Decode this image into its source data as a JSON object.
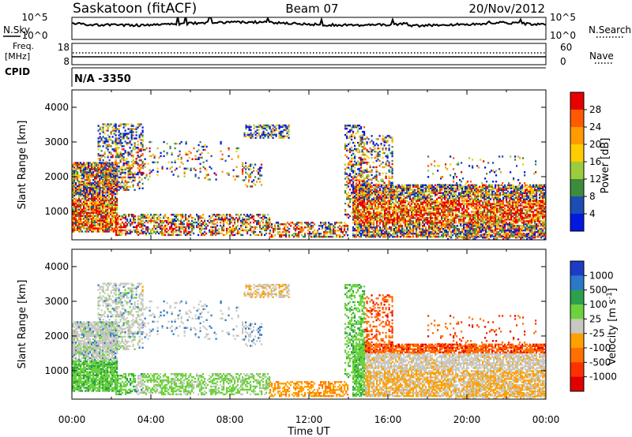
{
  "header": {
    "station": "Saskatoon (fitACF)",
    "beam": "Beam 07",
    "date": "20/Nov/2012"
  },
  "top_panel": {
    "left_label": "N.Sky",
    "right_label": "N.Search",
    "left_ticks": [
      "10^5",
      "10^0"
    ],
    "right_ticks": [
      "10^5",
      "10^0"
    ]
  },
  "freq_panel": {
    "left_label_line1": "Freq.",
    "left_label_line2": "[MHz]",
    "left_ticks": [
      "18",
      "8"
    ],
    "right_ticks": [
      "60",
      "0"
    ],
    "right_label": "Nave"
  },
  "cpid_panel": {
    "label": "CPID",
    "value": "N/A -3350"
  },
  "chart_data": [
    {
      "type": "heatmap",
      "name": "Power",
      "ylabel": "Slant Range [km]",
      "ylim": [
        180,
        4500
      ],
      "yticks": [
        1000,
        2000,
        3000,
        4000
      ],
      "xlim": [
        0,
        24
      ],
      "colorbar": {
        "label": "Power [dB]",
        "ticks": [
          "28",
          "24",
          "20",
          "16",
          "12",
          "8",
          "4"
        ],
        "colors": [
          "#e80000",
          "#ff5a00",
          "#ff9a00",
          "#ffcc00",
          "#9ccc3c",
          "#3c8c3c",
          "#1c4cb4",
          "#0018e0"
        ]
      }
    },
    {
      "type": "heatmap",
      "name": "Velocity",
      "ylabel": "Slant Range [km]",
      "ylim": [
        180,
        4500
      ],
      "yticks": [
        1000,
        2000,
        3000,
        4000
      ],
      "xlim": [
        0,
        24
      ],
      "xticks": [
        "00:00",
        "04:00",
        "08:00",
        "12:00",
        "16:00",
        "20:00",
        "00:00"
      ],
      "xlabel": "Time UT",
      "colorbar": {
        "label": "Velocity [m s^-1]",
        "ticks": [
          "1000",
          "500",
          "100",
          "25",
          "-25",
          "-100",
          "-500",
          "-1000"
        ],
        "colors": [
          "#1c3cc8",
          "#2c78c8",
          "#2ca04c",
          "#6cd23c",
          "#c8c8c0",
          "#ffa000",
          "#ff7000",
          "#ff3000",
          "#e00000"
        ]
      }
    }
  ]
}
